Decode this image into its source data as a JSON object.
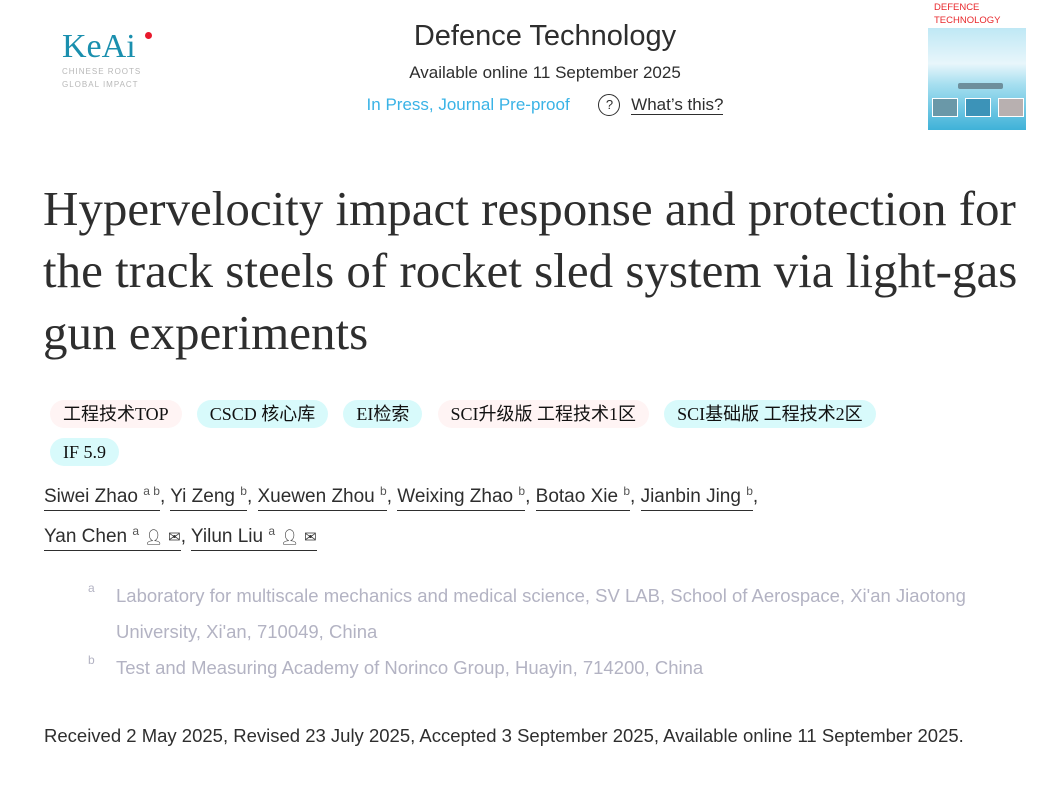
{
  "publisher_logo": {
    "text": "KeAi",
    "tagline": [
      "CHINESE ROOTS",
      "GLOBAL IMPACT"
    ]
  },
  "header": {
    "journal": "Defence Technology",
    "available_online": "Available online 11 September 2025",
    "status": "In Press, Journal Pre-proof",
    "help_icon": "question-circle-icon",
    "whats_this": "What’s this?"
  },
  "cover": {
    "title_line1": "DEFENCE",
    "title_line2": "TECHNOLOGY"
  },
  "article": {
    "title": "Hypervelocity impact response and protection for the track steels of rocket sled system via light-gas gun experiments"
  },
  "badges": [
    {
      "label": "工程技术TOP",
      "color": "#fff4f4"
    },
    {
      "label": "CSCD 核心库",
      "color": "#d8fafb"
    },
    {
      "label": "EI检索",
      "color": "#d8fafb"
    },
    {
      "label": "SCI升级版 工程技术1区",
      "color": "#fff4f4"
    },
    {
      "label": "SCI基础版 工程技术2区",
      "color": "#d8fafb"
    },
    {
      "label": "IF 5.9",
      "color": "#d8fafb"
    }
  ],
  "authors": [
    {
      "name": "Siwei Zhao",
      "aff": "a b"
    },
    {
      "name": "Yi Zeng",
      "aff": "b"
    },
    {
      "name": "Xuewen Zhou",
      "aff": "b"
    },
    {
      "name": "Weixing Zhao",
      "aff": "b"
    },
    {
      "name": "Botao Xie",
      "aff": "b"
    },
    {
      "name": "Jianbin Jing",
      "aff": "b"
    },
    {
      "name": "Yan Chen",
      "aff": "a",
      "icons": [
        "person-icon",
        "envelope-icon"
      ]
    },
    {
      "name": "Yilun Liu",
      "aff": "a",
      "icons": [
        "person-icon",
        "envelope-icon"
      ]
    }
  ],
  "affiliations": [
    {
      "label": "a",
      "text": "Laboratory for multiscale mechanics and medical science, SV LAB, School of Aerospace, Xi'an Jiaotong University, Xi'an, 710049, China"
    },
    {
      "label": "b",
      "text": "Test and Measuring Academy of Norinco Group, Huayin, 714200, China"
    }
  ],
  "dates": "Received 2 May 2025, Revised 23 July 2025, Accepted 3 September 2025, Available online 11 September 2025."
}
